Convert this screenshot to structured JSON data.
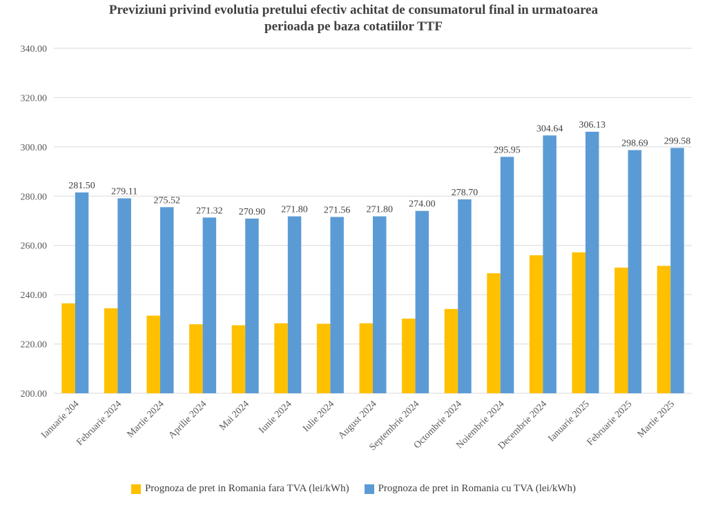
{
  "chart_data": {
    "type": "bar",
    "title_line1": "Previziuni privind evolutia pretului efectiv achitat de consumatorul final in urmatoarea",
    "title_line2": "perioada pe baza cotatiilor TTF",
    "categories": [
      "Ianuarie 204",
      "Februarie 2024",
      "Martie 2024",
      "Aprilie 2024",
      "Mai 2024",
      "Iunie 2024",
      "Iulie 2024",
      "August 2024",
      "Septembrie 2024",
      "Octombrie 2024",
      "Noiembrie 2024",
      "Decembrie 2024",
      "Ianuarie 2025",
      "Februarie 2025",
      "Martie 2025"
    ],
    "series": [
      {
        "name": "Prognoza de pret in Romania fara TVA (lei/kWh)",
        "color": "#FFC000",
        "values": [
          236.5,
          234.5,
          231.5,
          228.0,
          227.6,
          228.4,
          228.2,
          228.4,
          230.3,
          234.2,
          248.7,
          256.0,
          257.2,
          251.0,
          251.7
        ],
        "labels": []
      },
      {
        "name": "Prognoza de pret in Romania cu TVA (lei/kWh)",
        "color": "#5B9BD5",
        "values": [
          281.5,
          279.11,
          275.52,
          271.32,
          270.9,
          271.8,
          271.56,
          271.8,
          274.0,
          278.7,
          295.95,
          304.64,
          306.13,
          298.69,
          299.58
        ],
        "labels": [
          "281.50",
          "279.11",
          "275.52",
          "271.32",
          "270.90",
          "271.80",
          "271.56",
          "271.80",
          "274.00",
          "278.70",
          "295.95",
          "304.64",
          "306.13",
          "298.69",
          "299.58"
        ]
      }
    ],
    "yticks": [
      "200.00",
      "220.00",
      "240.00",
      "260.00",
      "280.00",
      "300.00",
      "320.00",
      "340.00"
    ],
    "ylim": [
      200,
      340
    ],
    "grid": true,
    "legend_position": "bottom"
  }
}
